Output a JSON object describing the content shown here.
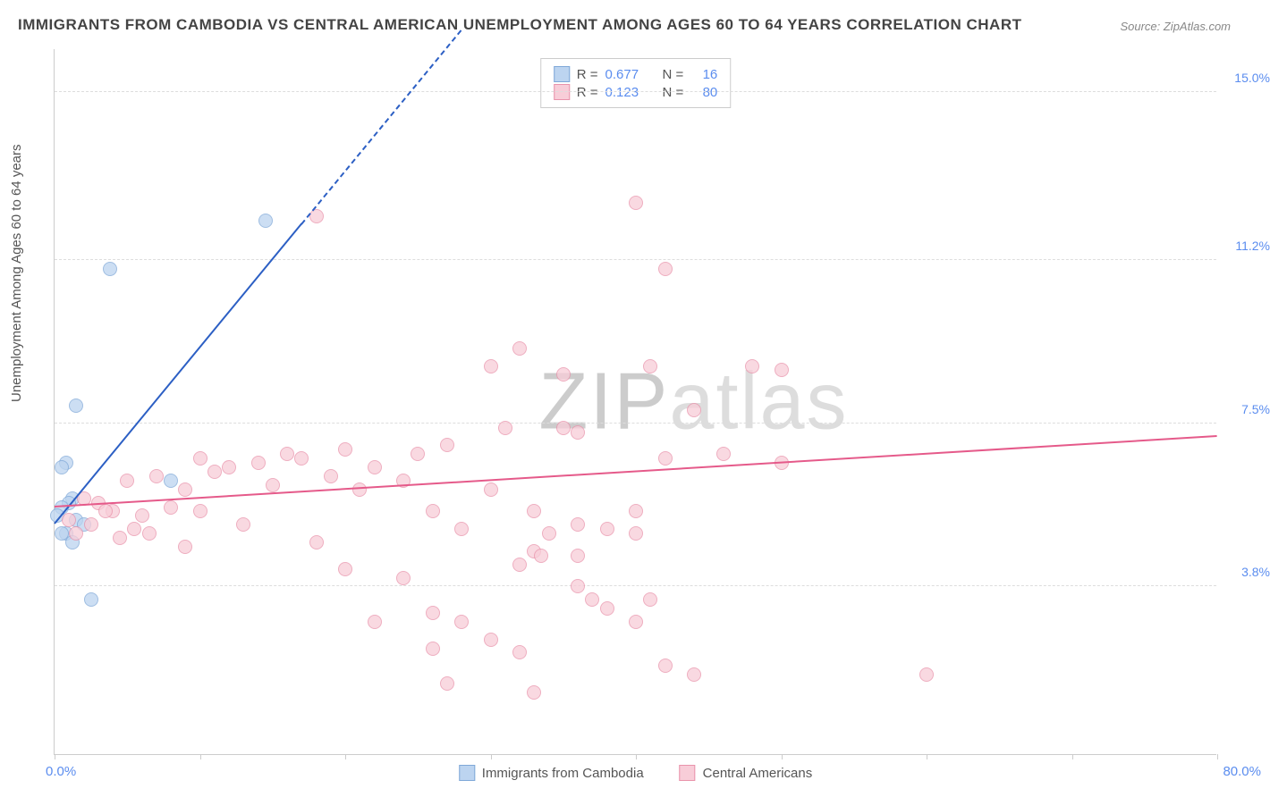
{
  "title": "IMMIGRANTS FROM CAMBODIA VS CENTRAL AMERICAN UNEMPLOYMENT AMONG AGES 60 TO 64 YEARS CORRELATION CHART",
  "source": "Source: ZipAtlas.com",
  "ylabel": "Unemployment Among Ages 60 to 64 years",
  "watermark_zip": "ZIP",
  "watermark_atlas": "atlas",
  "chart": {
    "type": "scatter",
    "xlim": [
      0,
      80
    ],
    "ylim": [
      0,
      16
    ],
    "xticks": [
      "0.0%",
      "80.0%"
    ],
    "yticks": [
      {
        "v": 3.8,
        "label": "3.8%"
      },
      {
        "v": 7.5,
        "label": "7.5%"
      },
      {
        "v": 11.2,
        "label": "11.2%"
      },
      {
        "v": 15.0,
        "label": "15.0%"
      }
    ],
    "xtick_marks": [
      0,
      10,
      20,
      30,
      40,
      50,
      60,
      70,
      80
    ],
    "background_color": "#ffffff",
    "grid_color": "#dddddd",
    "tick_color": "#5b8def",
    "point_radius": 8,
    "series": [
      {
        "name": "Immigrants from Cambodia",
        "color_fill": "#bcd4f0",
        "color_stroke": "#7fa8d8",
        "trend_color": "#2c5fc4",
        "r": "0.677",
        "n": "16",
        "trend": {
          "x1": 0,
          "y1": 5.2,
          "x2": 17,
          "y2": 12.0,
          "extend_x2": 28,
          "extend_y2": 16.4
        },
        "points": [
          {
            "x": 3.8,
            "y": 11.0
          },
          {
            "x": 14.5,
            "y": 12.1
          },
          {
            "x": 1.5,
            "y": 7.9
          },
          {
            "x": 0.8,
            "y": 6.6
          },
          {
            "x": 0.5,
            "y": 6.5
          },
          {
            "x": 8.0,
            "y": 6.2
          },
          {
            "x": 1.2,
            "y": 5.8
          },
          {
            "x": 1.0,
            "y": 5.7
          },
          {
            "x": 0.5,
            "y": 5.6
          },
          {
            "x": 1.5,
            "y": 5.3
          },
          {
            "x": 2.0,
            "y": 5.2
          },
          {
            "x": 0.8,
            "y": 5.0
          },
          {
            "x": 0.5,
            "y": 5.0
          },
          {
            "x": 1.2,
            "y": 4.8
          },
          {
            "x": 2.5,
            "y": 3.5
          },
          {
            "x": 0.2,
            "y": 5.4
          }
        ]
      },
      {
        "name": "Central Americans",
        "color_fill": "#f8cdd8",
        "color_stroke": "#e993ab",
        "trend_color": "#e55a8a",
        "r": "0.123",
        "n": "80",
        "trend": {
          "x1": 0,
          "y1": 5.6,
          "x2": 80,
          "y2": 7.2
        },
        "points": [
          {
            "x": 18,
            "y": 12.2
          },
          {
            "x": 40,
            "y": 12.5
          },
          {
            "x": 42,
            "y": 11.0
          },
          {
            "x": 32,
            "y": 9.2
          },
          {
            "x": 35,
            "y": 8.6
          },
          {
            "x": 30,
            "y": 8.8
          },
          {
            "x": 41,
            "y": 8.8
          },
          {
            "x": 48,
            "y": 8.8
          },
          {
            "x": 50,
            "y": 8.7
          },
          {
            "x": 44,
            "y": 7.8
          },
          {
            "x": 35,
            "y": 7.4
          },
          {
            "x": 36,
            "y": 7.3
          },
          {
            "x": 2,
            "y": 5.8
          },
          {
            "x": 3,
            "y": 5.7
          },
          {
            "x": 4,
            "y": 5.5
          },
          {
            "x": 5,
            "y": 6.2
          },
          {
            "x": 6,
            "y": 5.4
          },
          {
            "x": 7,
            "y": 6.3
          },
          {
            "x": 8,
            "y": 5.6
          },
          {
            "x": 9,
            "y": 6.0
          },
          {
            "x": 10,
            "y": 5.5
          },
          {
            "x": 11,
            "y": 6.4
          },
          {
            "x": 12,
            "y": 6.5
          },
          {
            "x": 13,
            "y": 5.2
          },
          {
            "x": 14,
            "y": 6.6
          },
          {
            "x": 15,
            "y": 6.1
          },
          {
            "x": 16,
            "y": 6.8
          },
          {
            "x": 17,
            "y": 6.7
          },
          {
            "x": 19,
            "y": 6.3
          },
          {
            "x": 20,
            "y": 6.9
          },
          {
            "x": 21,
            "y": 6.0
          },
          {
            "x": 22,
            "y": 6.5
          },
          {
            "x": 24,
            "y": 6.2
          },
          {
            "x": 25,
            "y": 6.8
          },
          {
            "x": 26,
            "y": 5.5
          },
          {
            "x": 27,
            "y": 7.0
          },
          {
            "x": 28,
            "y": 5.1
          },
          {
            "x": 30,
            "y": 6.0
          },
          {
            "x": 31,
            "y": 7.4
          },
          {
            "x": 33,
            "y": 5.5
          },
          {
            "x": 34,
            "y": 5.0
          },
          {
            "x": 36,
            "y": 5.2
          },
          {
            "x": 38,
            "y": 5.1
          },
          {
            "x": 40,
            "y": 5.5
          },
          {
            "x": 42,
            "y": 6.7
          },
          {
            "x": 46,
            "y": 6.8
          },
          {
            "x": 50,
            "y": 6.6
          },
          {
            "x": 1,
            "y": 5.3
          },
          {
            "x": 1.5,
            "y": 5.0
          },
          {
            "x": 2.5,
            "y": 5.2
          },
          {
            "x": 3.5,
            "y": 5.5
          },
          {
            "x": 4.5,
            "y": 4.9
          },
          {
            "x": 5.5,
            "y": 5.1
          },
          {
            "x": 6.5,
            "y": 5.0
          },
          {
            "x": 9,
            "y": 4.7
          },
          {
            "x": 18,
            "y": 4.8
          },
          {
            "x": 20,
            "y": 4.2
          },
          {
            "x": 22,
            "y": 3.0
          },
          {
            "x": 24,
            "y": 4.0
          },
          {
            "x": 26,
            "y": 3.2
          },
          {
            "x": 28,
            "y": 3.0
          },
          {
            "x": 27,
            "y": 1.6
          },
          {
            "x": 30,
            "y": 2.6
          },
          {
            "x": 32,
            "y": 4.3
          },
          {
            "x": 33,
            "y": 4.6
          },
          {
            "x": 33.5,
            "y": 4.5
          },
          {
            "x": 36,
            "y": 3.8
          },
          {
            "x": 37,
            "y": 3.5
          },
          {
            "x": 38,
            "y": 3.3
          },
          {
            "x": 40,
            "y": 5.0
          },
          {
            "x": 42,
            "y": 2.0
          },
          {
            "x": 44,
            "y": 1.8
          },
          {
            "x": 60,
            "y": 1.8
          },
          {
            "x": 33,
            "y": 1.4
          },
          {
            "x": 10,
            "y": 6.7
          },
          {
            "x": 32,
            "y": 2.3
          },
          {
            "x": 26,
            "y": 2.4
          },
          {
            "x": 36,
            "y": 4.5
          },
          {
            "x": 41,
            "y": 3.5
          },
          {
            "x": 40,
            "y": 3.0
          }
        ]
      }
    ],
    "legend_labels": {
      "r_prefix": "R =",
      "n_prefix": "N ="
    }
  }
}
